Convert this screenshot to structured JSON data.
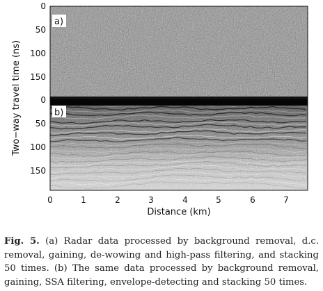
{
  "figure": {
    "x_axis": {
      "label": "Distance (km)",
      "ticks": [
        "0",
        "1",
        "2",
        "3",
        "4",
        "5",
        "6",
        "7"
      ]
    },
    "y_axis": {
      "label": "Two−way travel time (ns)",
      "panel_a_ticks": [
        "0",
        "50",
        "100",
        "150"
      ],
      "panel_b_ticks": [
        "0",
        "50",
        "100",
        "150"
      ]
    },
    "panels": [
      {
        "id": "a",
        "label": "a)"
      },
      {
        "id": "b",
        "label": "b)"
      }
    ]
  },
  "caption": {
    "label": "Fig. 5.",
    "text": " (a) Radar data processed by background removal, d.c. removal, gaining, de-wowing and high-pass filtering, and stacking 50 times. (b) The same data processed by background removal, gaining, SSA filtering, envelope-detecting and stacking 50 times."
  }
}
